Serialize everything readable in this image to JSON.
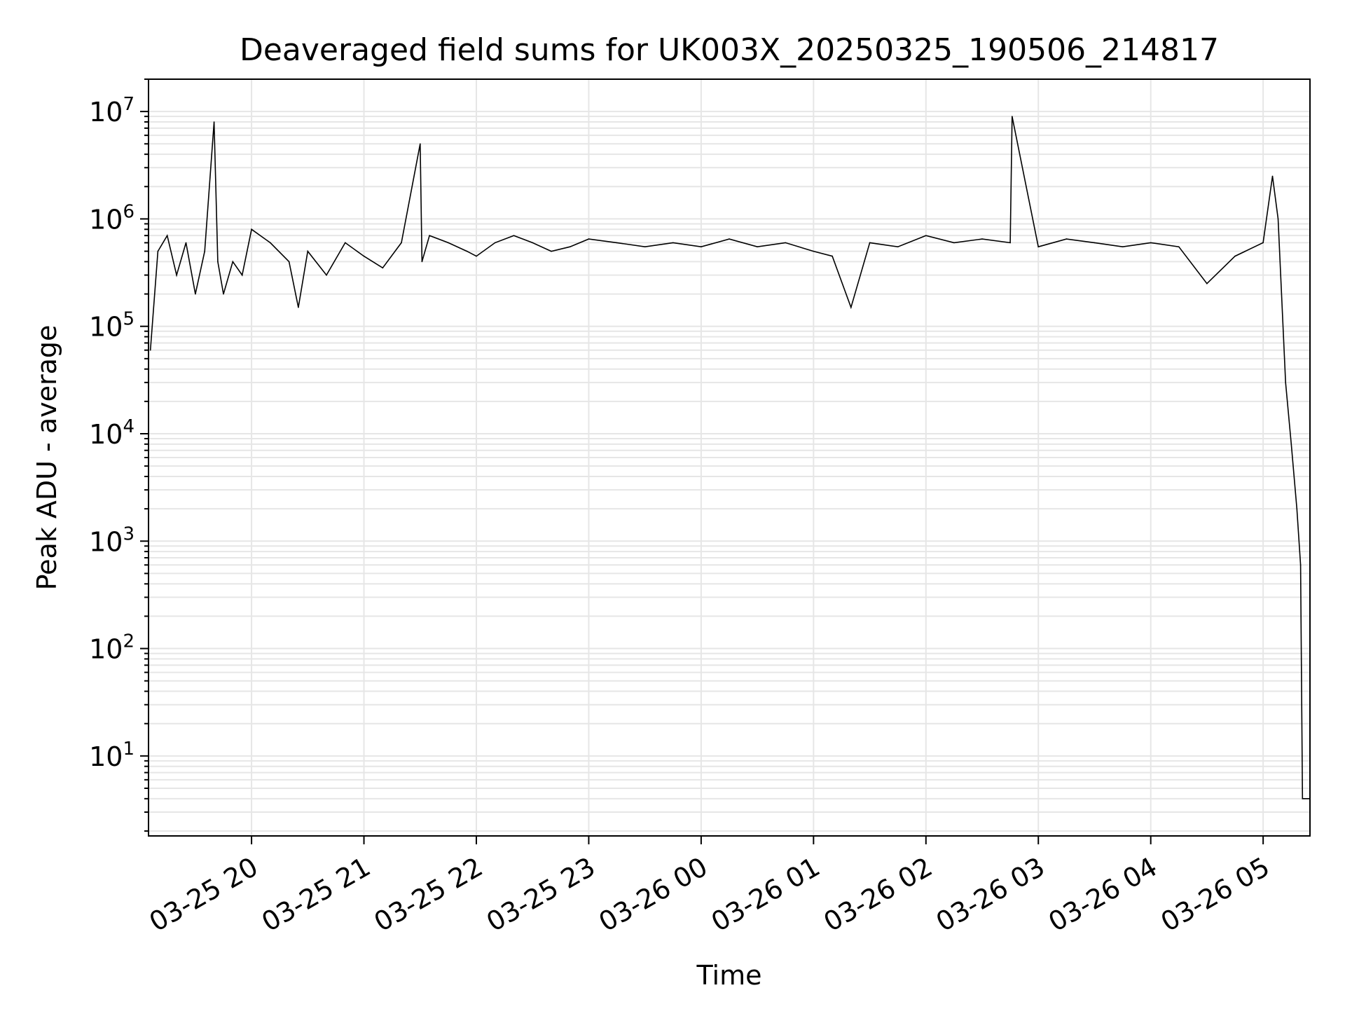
{
  "chart_data": {
    "type": "line",
    "title": "Deaveraged field sums for UK003X_20250325_190506_214817",
    "xlabel": "Time",
    "ylabel": "Peak ADU - average",
    "x_scale": "time",
    "y_scale": "log",
    "xlim": [
      "2025-03-25 19:05",
      "2025-03-26 05:25"
    ],
    "ylim": [
      1.8,
      20000000
    ],
    "x_ticks": [
      "03-25 20",
      "03-25 21",
      "03-25 22",
      "03-25 23",
      "03-26 00",
      "03-26 01",
      "03-26 02",
      "03-26 03",
      "03-26 04",
      "03-26 05"
    ],
    "x_tick_rotation_deg": 30,
    "y_ticks": [
      {
        "value": 10,
        "base": "10",
        "exp": "1"
      },
      {
        "value": 100,
        "base": "10",
        "exp": "2"
      },
      {
        "value": 1000,
        "base": "10",
        "exp": "3"
      },
      {
        "value": 10000,
        "base": "10",
        "exp": "4"
      },
      {
        "value": 100000,
        "base": "10",
        "exp": "5"
      },
      {
        "value": 1000000,
        "base": "10",
        "exp": "6"
      },
      {
        "value": 10000000,
        "base": "10",
        "exp": "7"
      }
    ],
    "grid": true,
    "line_color": "#000000",
    "grid_color": "#e6e6e6",
    "series": [
      {
        "x": [
          "2025-03-25 19:06",
          "2025-03-25 19:10",
          "2025-03-25 19:15",
          "2025-03-25 19:20",
          "2025-03-25 19:25",
          "2025-03-25 19:30",
          "2025-03-25 19:35",
          "2025-03-25 19:40",
          "2025-03-25 19:42",
          "2025-03-25 19:45",
          "2025-03-25 19:50",
          "2025-03-25 19:55",
          "2025-03-25 20:00",
          "2025-03-25 20:10",
          "2025-03-25 20:20",
          "2025-03-25 20:25",
          "2025-03-25 20:30",
          "2025-03-25 20:40",
          "2025-03-25 20:50",
          "2025-03-25 21:00",
          "2025-03-25 21:10",
          "2025-03-25 21:20",
          "2025-03-25 21:30",
          "2025-03-25 21:31",
          "2025-03-25 21:35",
          "2025-03-25 21:45",
          "2025-03-25 21:55",
          "2025-03-25 22:00",
          "2025-03-25 22:10",
          "2025-03-25 22:20",
          "2025-03-25 22:30",
          "2025-03-25 22:40",
          "2025-03-25 22:50",
          "2025-03-25 23:00",
          "2025-03-25 23:15",
          "2025-03-25 23:30",
          "2025-03-25 23:45",
          "2025-03-26 00:00",
          "2025-03-26 00:15",
          "2025-03-26 00:30",
          "2025-03-26 00:45",
          "2025-03-26 01:00",
          "2025-03-26 01:10",
          "2025-03-26 01:20",
          "2025-03-26 01:30",
          "2025-03-26 01:45",
          "2025-03-26 02:00",
          "2025-03-26 02:15",
          "2025-03-26 02:30",
          "2025-03-26 02:45",
          "2025-03-26 02:46",
          "2025-03-26 03:00",
          "2025-03-26 03:15",
          "2025-03-26 03:30",
          "2025-03-26 03:45",
          "2025-03-26 04:00",
          "2025-03-26 04:15",
          "2025-03-26 04:30",
          "2025-03-26 04:45",
          "2025-03-26 05:00",
          "2025-03-26 05:05",
          "2025-03-26 05:08",
          "2025-03-26 05:12",
          "2025-03-26 05:15",
          "2025-03-26 05:18",
          "2025-03-26 05:20",
          "2025-03-26 05:21",
          "2025-03-26 05:22",
          "2025-03-26 05:25"
        ],
        "y": [
          60000,
          500000,
          700000,
          300000,
          600000,
          200000,
          500000,
          8000000,
          400000,
          200000,
          400000,
          300000,
          800000,
          600000,
          400000,
          150000,
          500000,
          300000,
          600000,
          450000,
          350000,
          600000,
          5000000,
          400000,
          700000,
          600000,
          500000,
          450000,
          600000,
          700000,
          600000,
          500000,
          550000,
          650000,
          600000,
          550000,
          600000,
          550000,
          650000,
          550000,
          600000,
          500000,
          450000,
          150000,
          600000,
          550000,
          700000,
          600000,
          650000,
          600000,
          9000000,
          550000,
          650000,
          600000,
          550000,
          600000,
          550000,
          250000,
          450000,
          600000,
          2500000,
          1000000,
          30000,
          8000,
          2000,
          600,
          4,
          4,
          4
        ]
      }
    ]
  }
}
